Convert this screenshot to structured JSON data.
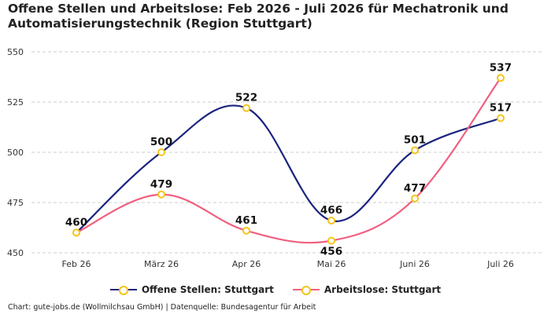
{
  "title": "Offene Stellen und Arbeitslose: Feb 2026 - Juli 2026 für Mechatronik und Automatisierungstechnik (Region Stuttgart)",
  "footer": "Chart: gute-jobs.de (Wollmilchsau GmbH) | Datenquelle: Bundesagentur für Arbeit",
  "colors": {
    "series1": "#1a237e",
    "series2": "#f06080",
    "marker": "#f5c518",
    "grid": "#cccccc"
  },
  "chart_data": {
    "type": "line",
    "title": "Offene Stellen und Arbeitslose: Feb 2026 - Juli 2026 für Mechatronik und Automatisierungstechnik (Region Stuttgart)",
    "categories": [
      "Feb 26",
      "März 26",
      "Apr 26",
      "Mai 26",
      "Juni 26",
      "Juli 26"
    ],
    "ylim": [
      450,
      550
    ],
    "yticks": [
      450,
      475,
      500,
      525,
      550
    ],
    "grid": true,
    "legend_position": "bottom",
    "series": [
      {
        "name": "Offene Stellen: Stuttgart",
        "values": [
          460,
          500,
          522,
          466,
          501,
          517
        ]
      },
      {
        "name": "Arbeitslose: Stuttgart",
        "values": [
          460,
          479,
          461,
          456,
          477,
          537
        ]
      }
    ]
  }
}
